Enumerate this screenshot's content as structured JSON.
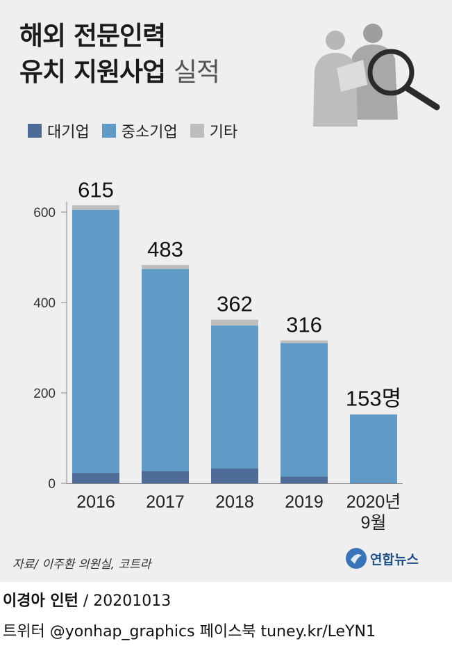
{
  "header": {
    "title_line1": "해외 전문인력",
    "title_line2_bold": "유치 지원사업",
    "title_line2_light": "실적"
  },
  "legend": [
    {
      "label": "대기업",
      "color": "#4f6c99"
    },
    {
      "label": "중소기업",
      "color": "#5f9bc6"
    },
    {
      "label": "기타",
      "color": "#bdbdbd"
    }
  ],
  "chart_data": {
    "type": "bar",
    "stacked": true,
    "categories": [
      "2016",
      "2017",
      "2018",
      "2019",
      "2020년\n9월"
    ],
    "series": [
      {
        "name": "대기업",
        "color": "#4f6c99",
        "values": [
          23,
          27,
          33,
          15,
          1
        ]
      },
      {
        "name": "중소기업",
        "color": "#5f9bc6",
        "values": [
          582,
          447,
          316,
          295,
          151
        ]
      },
      {
        "name": "기타",
        "color": "#bdbdbd",
        "values": [
          10,
          9,
          13,
          6,
          1
        ]
      }
    ],
    "totals": [
      615,
      483,
      362,
      316,
      153
    ],
    "total_labels": [
      "615",
      "483",
      "362",
      "316",
      "153명"
    ],
    "ylim": [
      0,
      620
    ],
    "yticks": [
      0,
      200,
      400,
      600
    ],
    "ytick_labels": [
      "0",
      "200",
      "400",
      "600"
    ],
    "grid": false
  },
  "footer": {
    "source": "자료/ 이주환 의원실, 코트라",
    "logo_text": "연합뉴스",
    "credit_name": "이경아 인턴",
    "credit_date": " / 20201013",
    "credit_line2": "트위터 @yonhap_graphics  페이스북 tuney.kr/LeYN1"
  }
}
